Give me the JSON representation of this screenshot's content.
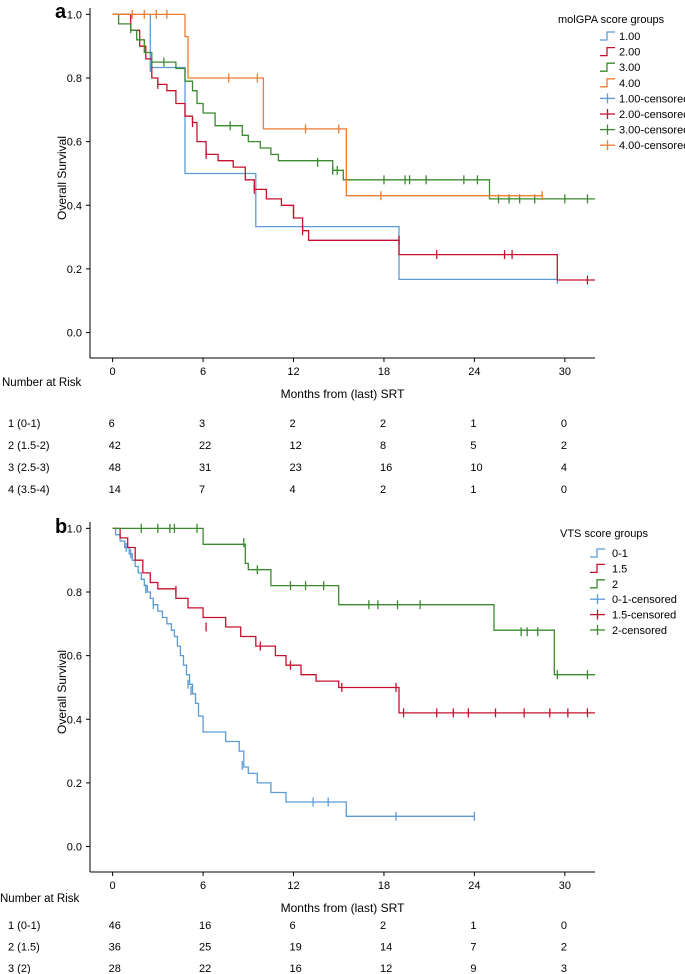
{
  "chart_data": [
    {
      "panel_label": "a",
      "type": "line",
      "subtype": "kaplan-meier",
      "xlabel": "Months from (last) SRT",
      "ylabel": "Overall Survival",
      "x_ticks": [
        0,
        6,
        12,
        18,
        24,
        30
      ],
      "y_ticks": [
        0.0,
        0.2,
        0.4,
        0.6,
        0.8,
        1.0
      ],
      "y_tick_labels": [
        "0.0",
        "0.2",
        "0.4",
        "0.6",
        "0.8",
        "1.0"
      ],
      "xlim": [
        -1.5,
        32
      ],
      "ylim": [
        -0.08,
        1.02
      ],
      "legend_title": "molGPA score groups",
      "legend_position": "top-right",
      "legend_entries": [
        "1.00",
        "2.00",
        "3.00",
        "4.00",
        "1.00-censored",
        "2.00-censored",
        "3.00-censored",
        "4.00-censored"
      ],
      "series": [
        {
          "name": "1.00",
          "color": "#5b9bd5",
          "steps": [
            [
              0,
              1.0
            ],
            [
              2.5,
              0.833
            ],
            [
              4.8,
              0.5
            ],
            [
              9.5,
              0.333
            ],
            [
              19,
              0.167
            ],
            [
              29.5,
              0.167
            ]
          ],
          "censored": [
            [
              2.5,
              0.833
            ],
            [
              29.5,
              0.167
            ]
          ]
        },
        {
          "name": "2.00",
          "color": "#c8102e",
          "steps": [
            [
              0,
              1.0
            ],
            [
              1.2,
              0.95
            ],
            [
              1.8,
              0.9
            ],
            [
              2.2,
              0.86
            ],
            [
              2.6,
              0.8
            ],
            [
              3.0,
              0.78
            ],
            [
              3.6,
              0.76
            ],
            [
              4.2,
              0.72
            ],
            [
              4.8,
              0.68
            ],
            [
              5.3,
              0.66
            ],
            [
              5.6,
              0.6
            ],
            [
              6.2,
              0.56
            ],
            [
              7.0,
              0.54
            ],
            [
              8.0,
              0.52
            ],
            [
              8.8,
              0.48
            ],
            [
              9.4,
              0.45
            ],
            [
              10.2,
              0.42
            ],
            [
              11.2,
              0.4
            ],
            [
              12.0,
              0.36
            ],
            [
              12.6,
              0.32
            ],
            [
              13.0,
              0.29
            ],
            [
              19.0,
              0.245
            ],
            [
              29.5,
              0.165
            ],
            [
              32,
              0.165
            ]
          ],
          "censored": [
            [
              3.0,
              0.78
            ],
            [
              5.3,
              0.66
            ],
            [
              6.2,
              0.56
            ],
            [
              9.4,
              0.45
            ],
            [
              12.0,
              0.385
            ],
            [
              12.6,
              0.32
            ],
            [
              19.0,
              0.29
            ],
            [
              21.5,
              0.245
            ],
            [
              26.0,
              0.245
            ],
            [
              26.5,
              0.245
            ],
            [
              31.5,
              0.165
            ]
          ]
        },
        {
          "name": "3.00",
          "color": "#3a8a2e",
          "steps": [
            [
              0,
              1.0
            ],
            [
              0.4,
              0.97
            ],
            [
              1.2,
              0.95
            ],
            [
              1.6,
              0.92
            ],
            [
              2.1,
              0.88
            ],
            [
              2.6,
              0.85
            ],
            [
              4.2,
              0.83
            ],
            [
              4.8,
              0.79
            ],
            [
              5.3,
              0.76
            ],
            [
              5.6,
              0.72
            ],
            [
              6.0,
              0.69
            ],
            [
              6.8,
              0.65
            ],
            [
              8.0,
              0.65
            ],
            [
              8.6,
              0.62
            ],
            [
              9.0,
              0.6
            ],
            [
              9.8,
              0.58
            ],
            [
              10.5,
              0.56
            ],
            [
              11.0,
              0.54
            ],
            [
              14.6,
              0.51
            ],
            [
              15.3,
              0.48
            ],
            [
              25.0,
              0.42
            ],
            [
              32,
              0.42
            ]
          ],
          "censored": [
            [
              1.2,
              0.955
            ],
            [
              2.6,
              0.85
            ],
            [
              3.4,
              0.85
            ],
            [
              7.8,
              0.65
            ],
            [
              13.6,
              0.535
            ],
            [
              14.6,
              0.51
            ],
            [
              14.9,
              0.51
            ],
            [
              18.0,
              0.48
            ],
            [
              19.4,
              0.48
            ],
            [
              19.7,
              0.48
            ],
            [
              20.8,
              0.48
            ],
            [
              23.3,
              0.48
            ],
            [
              24.2,
              0.48
            ],
            [
              25.6,
              0.42
            ],
            [
              26.3,
              0.42
            ],
            [
              27.0,
              0.42
            ],
            [
              28.0,
              0.42
            ],
            [
              30.0,
              0.42
            ],
            [
              31.5,
              0.42
            ]
          ]
        },
        {
          "name": "4.00",
          "color": "#ed7d31",
          "steps": [
            [
              0,
              1.0
            ],
            [
              4.8,
              0.93
            ],
            [
              5.0,
              0.8
            ],
            [
              10.0,
              0.64
            ],
            [
              15.5,
              0.43
            ],
            [
              28.5,
              0.43
            ]
          ],
          "censored": [
            [
              1.3,
              1.0
            ],
            [
              2.1,
              1.0
            ],
            [
              2.9,
              1.0
            ],
            [
              3.6,
              1.0
            ],
            [
              7.7,
              0.8
            ],
            [
              9.6,
              0.8
            ],
            [
              12.8,
              0.64
            ],
            [
              15.0,
              0.64
            ],
            [
              17.8,
              0.43
            ],
            [
              28.5,
              0.43
            ]
          ]
        }
      ],
      "risk_table": {
        "header": "Number at Risk",
        "timepoints": [
          0,
          6,
          12,
          18,
          24,
          30
        ],
        "rows": [
          {
            "label": "1  (0-1)",
            "values": [
              "6",
              "3",
              "2",
              "2",
              "1",
              "0"
            ]
          },
          {
            "label": "2  (1.5-2)",
            "values": [
              "42",
              "22",
              "12",
              "8",
              "5",
              "2"
            ]
          },
          {
            "label": "3  (2.5-3)",
            "values": [
              "48",
              "31",
              "23",
              "16",
              "10",
              "4"
            ]
          },
          {
            "label": "4  (3.5-4)",
            "values": [
              "14",
              "7",
              "4",
              "2",
              "1",
              "0"
            ]
          }
        ]
      }
    },
    {
      "panel_label": "b",
      "type": "line",
      "subtype": "kaplan-meier",
      "xlabel": "Months from (last) SRT",
      "ylabel": "Overall Survival",
      "x_ticks": [
        0,
        6,
        12,
        18,
        24,
        30
      ],
      "y_ticks": [
        0.0,
        0.2,
        0.4,
        0.6,
        0.8,
        1.0
      ],
      "y_tick_labels": [
        "0.0",
        "0.2",
        "0.4",
        "0.6",
        "0.8",
        "1.0"
      ],
      "xlim": [
        -1.5,
        32
      ],
      "ylim": [
        -0.08,
        1.02
      ],
      "legend_title": "VTS score groups",
      "legend_position": "top-right",
      "legend_entries": [
        "0-1",
        "1.5",
        "2",
        "0-1-censored",
        "1.5-censored",
        "2-censored"
      ],
      "series": [
        {
          "name": "0-1",
          "color": "#5b9bd5",
          "steps": [
            [
              0,
              1.0
            ],
            [
              0.2,
              0.98
            ],
            [
              0.5,
              0.96
            ],
            [
              0.8,
              0.94
            ],
            [
              1.1,
              0.92
            ],
            [
              1.3,
              0.9
            ],
            [
              1.5,
              0.88
            ],
            [
              1.7,
              0.86
            ],
            [
              1.9,
              0.84
            ],
            [
              2.1,
              0.82
            ],
            [
              2.3,
              0.8
            ],
            [
              2.5,
              0.78
            ],
            [
              2.7,
              0.76
            ],
            [
              3.0,
              0.74
            ],
            [
              3.3,
              0.72
            ],
            [
              3.6,
              0.7
            ],
            [
              3.9,
              0.68
            ],
            [
              4.1,
              0.66
            ],
            [
              4.3,
              0.63
            ],
            [
              4.5,
              0.6
            ],
            [
              4.7,
              0.57
            ],
            [
              4.9,
              0.54
            ],
            [
              5.1,
              0.51
            ],
            [
              5.3,
              0.48
            ],
            [
              5.5,
              0.45
            ],
            [
              5.7,
              0.41
            ],
            [
              6.0,
              0.36
            ],
            [
              7.5,
              0.33
            ],
            [
              8.4,
              0.3
            ],
            [
              8.7,
              0.25
            ],
            [
              9.0,
              0.23
            ],
            [
              9.6,
              0.2
            ],
            [
              10.5,
              0.17
            ],
            [
              11.5,
              0.14
            ],
            [
              15.5,
              0.095
            ],
            [
              24.0,
              0.095
            ]
          ],
          "censored": [
            [
              0.9,
              0.94
            ],
            [
              1.2,
              0.92
            ],
            [
              2.2,
              0.81
            ],
            [
              2.7,
              0.76
            ],
            [
              5.0,
              0.51
            ],
            [
              5.2,
              0.49
            ],
            [
              8.6,
              0.255
            ],
            [
              13.3,
              0.14
            ],
            [
              14.3,
              0.14
            ],
            [
              18.8,
              0.095
            ],
            [
              24.0,
              0.095
            ]
          ]
        },
        {
          "name": "1.5",
          "color": "#c8102e",
          "steps": [
            [
              0,
              1.0
            ],
            [
              0.5,
              0.97
            ],
            [
              1.0,
              0.94
            ],
            [
              1.5,
              0.9
            ],
            [
              2.0,
              0.86
            ],
            [
              2.5,
              0.83
            ],
            [
              3.0,
              0.81
            ],
            [
              4.2,
              0.78
            ],
            [
              5.0,
              0.75
            ],
            [
              6.0,
              0.72
            ],
            [
              7.5,
              0.69
            ],
            [
              8.5,
              0.66
            ],
            [
              9.5,
              0.63
            ],
            [
              10.8,
              0.6
            ],
            [
              11.5,
              0.57
            ],
            [
              12.5,
              0.54
            ],
            [
              13.5,
              0.52
            ],
            [
              15.0,
              0.5
            ],
            [
              19.0,
              0.42
            ],
            [
              32,
              0.42
            ]
          ],
          "censored": [
            [
              4.2,
              0.805
            ],
            [
              6.2,
              0.69
            ],
            [
              9.8,
              0.63
            ],
            [
              11.8,
              0.57
            ],
            [
              15.2,
              0.5
            ],
            [
              18.8,
              0.5
            ],
            [
              19.3,
              0.42
            ],
            [
              21.5,
              0.42
            ],
            [
              22.6,
              0.42
            ],
            [
              23.6,
              0.42
            ],
            [
              25.4,
              0.42
            ],
            [
              27.3,
              0.42
            ],
            [
              29.0,
              0.42
            ],
            [
              30.2,
              0.42
            ],
            [
              31.5,
              0.42
            ]
          ]
        },
        {
          "name": "2",
          "color": "#3a8a2e",
          "steps": [
            [
              0,
              1.0
            ],
            [
              6.0,
              0.95
            ],
            [
              8.8,
              0.89
            ],
            [
              9.0,
              0.87
            ],
            [
              10.5,
              0.82
            ],
            [
              15.0,
              0.76
            ],
            [
              25.3,
              0.68
            ],
            [
              29.3,
              0.54
            ],
            [
              32,
              0.54
            ]
          ],
          "censored": [
            [
              1.9,
              1.0
            ],
            [
              3.0,
              1.0
            ],
            [
              3.8,
              1.0
            ],
            [
              4.1,
              1.0
            ],
            [
              5.6,
              1.0
            ],
            [
              8.7,
              0.955
            ],
            [
              9.6,
              0.87
            ],
            [
              11.8,
              0.82
            ],
            [
              12.8,
              0.82
            ],
            [
              14.0,
              0.82
            ],
            [
              17.0,
              0.76
            ],
            [
              17.6,
              0.76
            ],
            [
              18.9,
              0.76
            ],
            [
              20.4,
              0.76
            ],
            [
              27.1,
              0.675
            ],
            [
              27.5,
              0.675
            ],
            [
              28.2,
              0.675
            ],
            [
              29.5,
              0.54
            ],
            [
              31.5,
              0.54
            ]
          ]
        }
      ],
      "risk_table": {
        "header": "Number at Risk",
        "timepoints": [
          0,
          6,
          12,
          18,
          24,
          30
        ],
        "rows": [
          {
            "label": "1  (0-1)",
            "values": [
              "46",
              "16",
              "6",
              "2",
              "1",
              "0"
            ]
          },
          {
            "label": "2  (1.5)",
            "values": [
              "36",
              "25",
              "19",
              "14",
              "7",
              "2"
            ]
          },
          {
            "label": "3  (2)",
            "values": [
              "28",
              "22",
              "16",
              "12",
              "9",
              "3"
            ]
          }
        ]
      }
    }
  ]
}
